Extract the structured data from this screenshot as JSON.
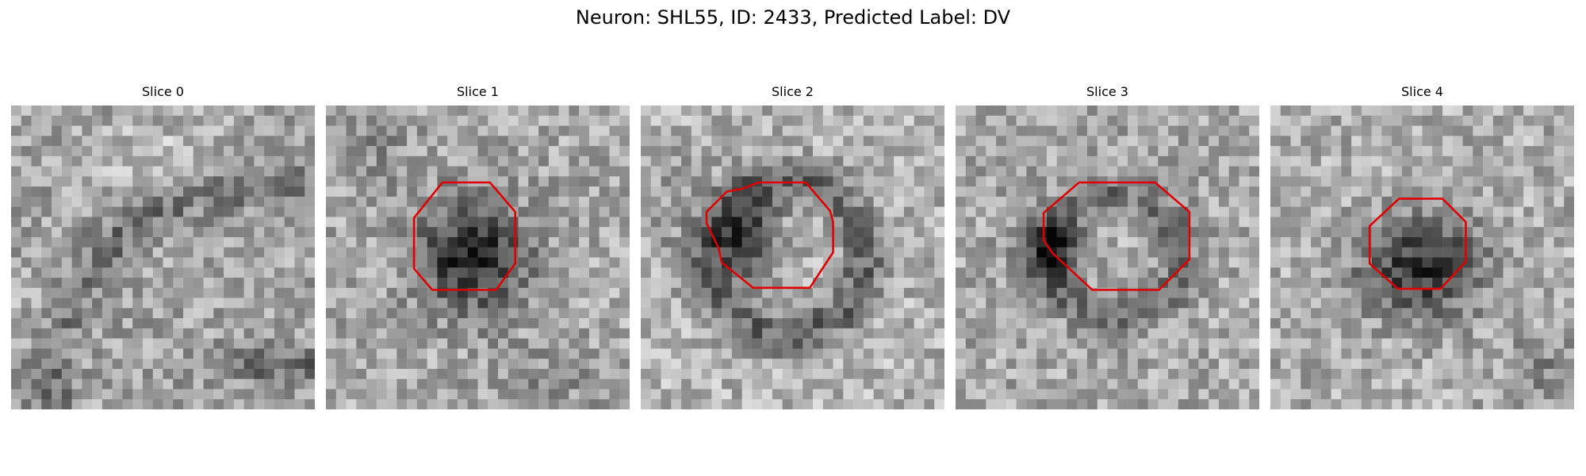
{
  "figure": {
    "title": "Neuron: SHL55, ID: 2433, Predicted Label: DV"
  },
  "contour_color": "#e00000",
  "panels": [
    {
      "title": "Slice 0",
      "has_contour": false
    },
    {
      "title": "Slice 1",
      "has_contour": true
    },
    {
      "title": "Slice 2",
      "has_contour": true
    },
    {
      "title": "Slice 3",
      "has_contour": true
    },
    {
      "title": "Slice 4",
      "has_contour": true
    }
  ]
}
